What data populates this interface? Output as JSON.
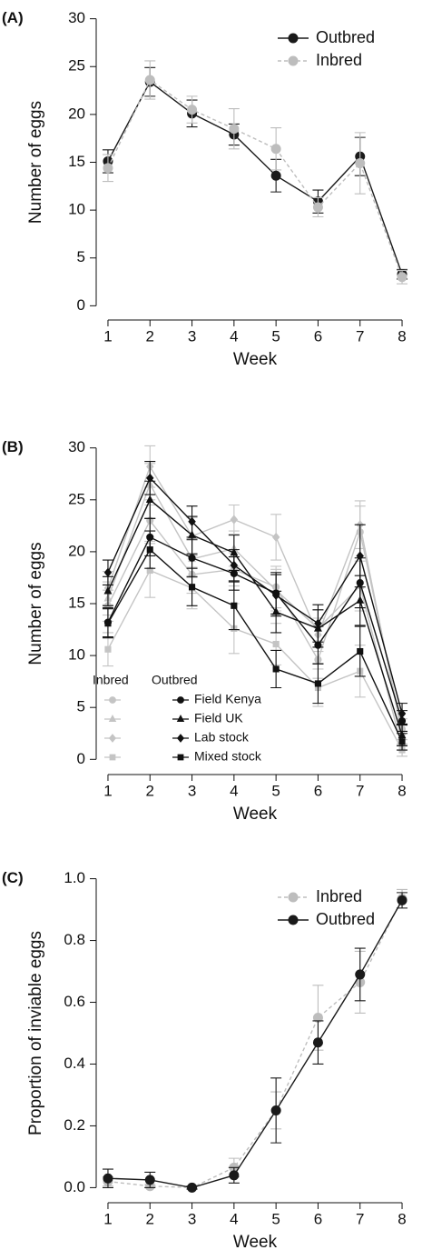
{
  "chart_data": [
    {
      "type": "line",
      "panel_label": "(A)",
      "y_label": "Number of eggs",
      "x_label": "Week",
      "x": [
        1,
        2,
        3,
        4,
        5,
        6,
        7,
        8
      ],
      "xlim": [
        0.72,
        8.28
      ],
      "xticks": [
        1,
        2,
        3,
        4,
        5,
        6,
        7,
        8
      ],
      "ylim": [
        -1.2,
        31.2
      ],
      "yticks": [
        0,
        5,
        10,
        15,
        20,
        25,
        30
      ],
      "legend": "top-right",
      "series": [
        {
          "name": "Outbred",
          "color": "#1a1a1a",
          "linestyle": "solid",
          "marker": "circle",
          "values": [
            15.1,
            23.4,
            20.1,
            17.9,
            13.6,
            10.9,
            15.6,
            3.3
          ],
          "errors": [
            1.2,
            1.5,
            1.4,
            1.1,
            1.7,
            1.2,
            2.0,
            0.5
          ]
        },
        {
          "name": "Inbred",
          "color": "#bdbdbd",
          "linestyle": "dashed",
          "marker": "circle",
          "values": [
            14.4,
            23.6,
            20.5,
            18.5,
            16.4,
            10.3,
            14.9,
            3.0
          ],
          "errors": [
            1.4,
            2.0,
            1.4,
            2.1,
            2.2,
            1.0,
            3.2,
            0.7
          ]
        }
      ]
    },
    {
      "type": "line",
      "panel_label": "(B)",
      "y_label": "Number of eggs",
      "x_label": "Week",
      "x": [
        1,
        2,
        3,
        4,
        5,
        6,
        7,
        8
      ],
      "xlim": [
        0.72,
        8.28
      ],
      "xticks": [
        1,
        2,
        3,
        4,
        5,
        6,
        7,
        8
      ],
      "ylim": [
        -1.2,
        31.2
      ],
      "yticks": [
        0,
        5,
        10,
        15,
        20,
        25,
        30
      ],
      "legend": "bottom-left",
      "series_names": [
        "Field Kenya",
        "Field UK",
        "Lab stock",
        "Mixed stock"
      ],
      "markers": [
        "circle",
        "triangle",
        "diamond",
        "square"
      ],
      "groups": [
        {
          "name": "Inbred",
          "color": "#c4c4c4",
          "series": [
            {
              "values": [
                14.8,
                23.0,
                17.8,
                18.3,
                16.6,
                9.6,
                21.9,
                2.9
              ],
              "errors": [
                1.5,
                2.0,
                1.8,
                1.6,
                2.0,
                1.8,
                2.5,
                1.0
              ]
            },
            {
              "values": [
                15.5,
                26.5,
                19.3,
                20.3,
                16.3,
                12.6,
                16.7,
                1.1
              ],
              "errors": [
                1.6,
                2.0,
                1.8,
                1.7,
                2.0,
                1.8,
                2.4,
                0.8
              ]
            },
            {
              "values": [
                16.5,
                28.2,
                21.5,
                23.1,
                21.4,
                12.0,
                22.6,
                2.4
              ],
              "errors": [
                1.6,
                2.0,
                1.8,
                1.4,
                2.2,
                1.6,
                2.3,
                1.0
              ]
            },
            {
              "values": [
                10.6,
                18.2,
                16.5,
                12.6,
                11.1,
                6.9,
                8.5,
                0.9
              ],
              "errors": [
                1.6,
                2.6,
                2.0,
                2.4,
                2.0,
                1.8,
                2.5,
                0.6
              ]
            }
          ]
        },
        {
          "name": "Outbred",
          "color": "#111111",
          "series": [
            {
              "values": [
                13.2,
                21.4,
                19.4,
                17.9,
                16.0,
                11.0,
                17.0,
                3.7
              ],
              "errors": [
                1.4,
                1.8,
                1.8,
                1.6,
                2.0,
                1.8,
                2.4,
                1.0
              ]
            },
            {
              "values": [
                16.2,
                25.0,
                21.6,
                19.9,
                14.2,
                12.6,
                15.3,
                2.3
              ],
              "errors": [
                1.4,
                1.8,
                1.8,
                1.7,
                2.0,
                1.8,
                2.4,
                1.0
              ]
            },
            {
              "values": [
                18.0,
                27.1,
                22.9,
                18.7,
                15.8,
                13.1,
                19.6,
                4.4
              ],
              "errors": [
                1.2,
                1.6,
                1.5,
                1.5,
                2.0,
                1.8,
                3.0,
                1.0
              ]
            },
            {
              "values": [
                13.1,
                20.2,
                16.6,
                14.8,
                8.7,
                7.3,
                10.4,
                1.7
              ],
              "errors": [
                1.4,
                1.8,
                1.8,
                2.3,
                1.8,
                1.9,
                2.4,
                0.8
              ]
            }
          ]
        }
      ]
    },
    {
      "type": "line",
      "panel_label": "(C)",
      "y_label": "Proportion of inviable eggs",
      "x_label": "Week",
      "x": [
        1,
        2,
        3,
        4,
        5,
        6,
        7,
        8
      ],
      "xlim": [
        0.72,
        8.28
      ],
      "xticks": [
        1,
        2,
        3,
        4,
        5,
        6,
        7,
        8
      ],
      "ylim": [
        -0.04,
        1.04
      ],
      "yticks": [
        {
          "value": 0,
          "label": "0.0"
        },
        0.2,
        0.4,
        0.6,
        0.8,
        {
          "value": 1,
          "label": "1.0"
        }
      ],
      "legend": "top-right",
      "series": [
        {
          "name": "Inbred",
          "color": "#bdbdbd",
          "linestyle": "dashed",
          "marker": "circle",
          "values": [
            0.02,
            0.005,
            0.0,
            0.065,
            0.25,
            0.55,
            0.665,
            0.935
          ],
          "errors": [
            0.015,
            0.005,
            0.003,
            0.03,
            0.06,
            0.105,
            0.1,
            0.03
          ]
        },
        {
          "name": "Outbred",
          "color": "#1a1a1a",
          "linestyle": "solid",
          "marker": "circle",
          "values": [
            0.03,
            0.025,
            0.0,
            0.04,
            0.25,
            0.47,
            0.69,
            0.93
          ],
          "errors": [
            0.03,
            0.025,
            0.005,
            0.025,
            0.105,
            0.07,
            0.085,
            0.025
          ]
        }
      ]
    }
  ]
}
